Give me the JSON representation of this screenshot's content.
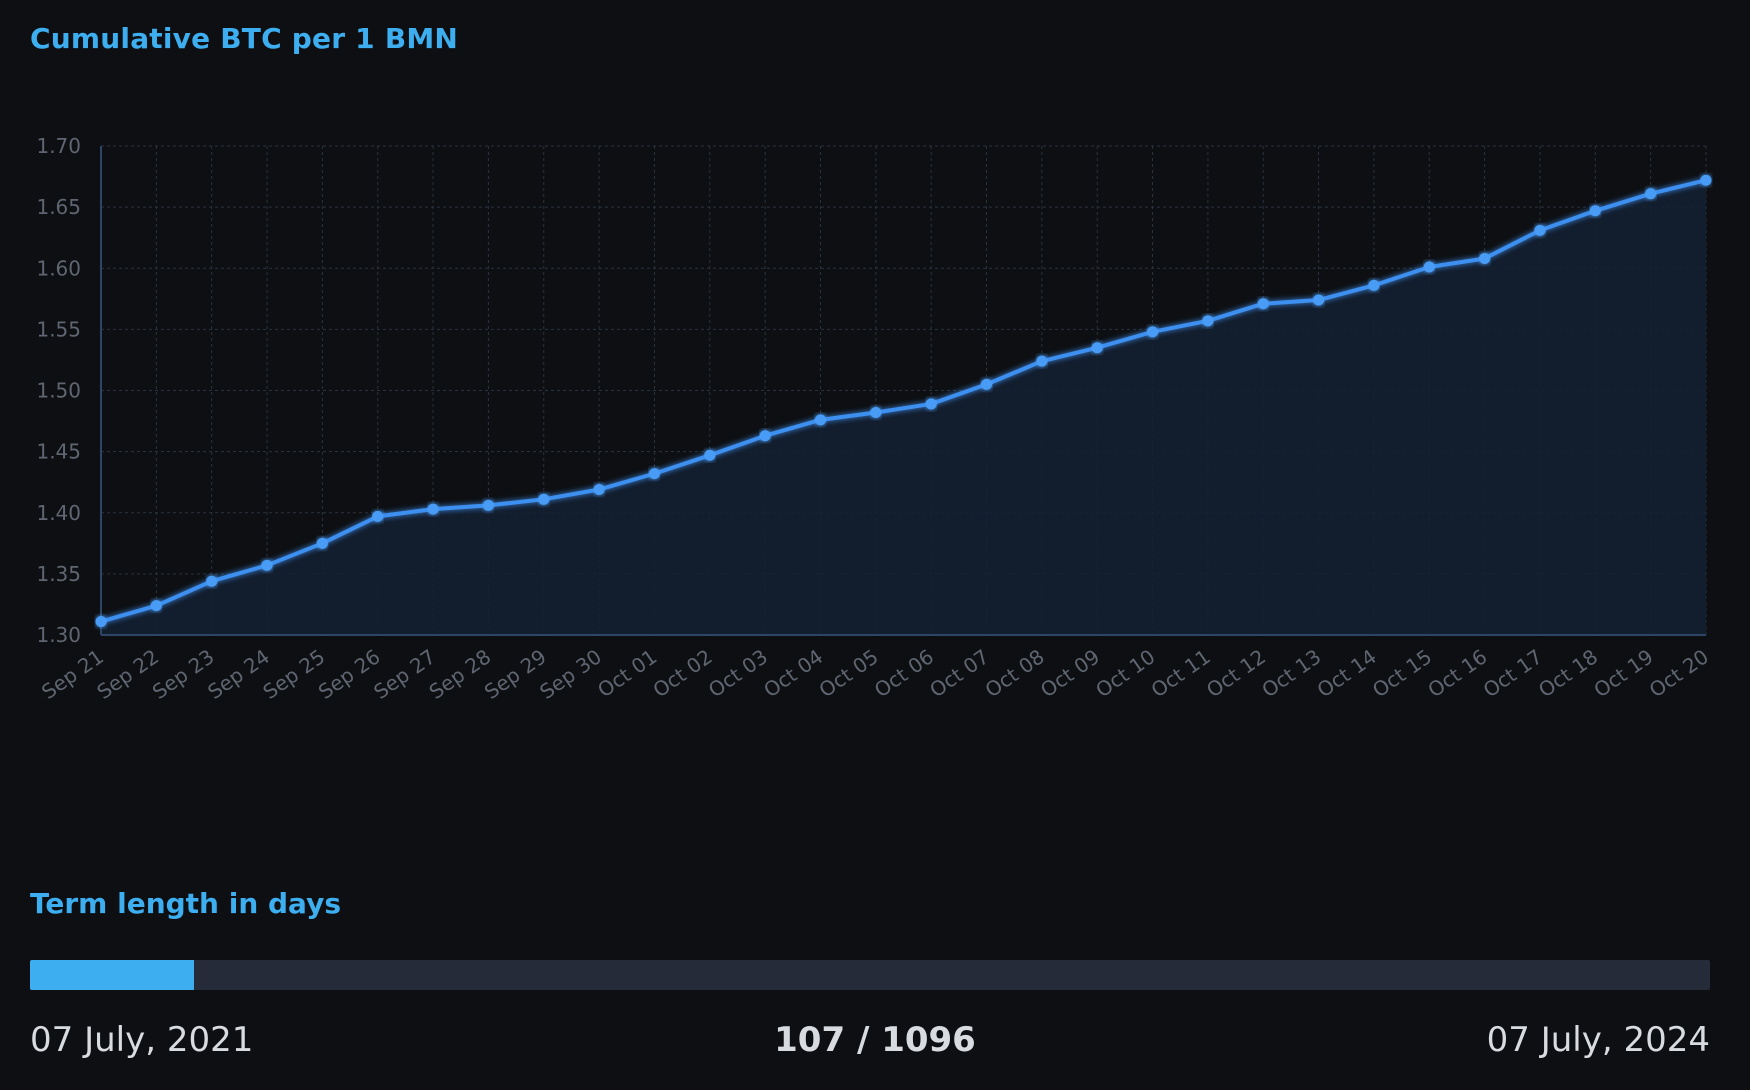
{
  "chart_title": "Cumulative BTC per 1 BMN",
  "chart_data": {
    "type": "area",
    "title": "Cumulative BTC per 1 BMN",
    "xlabel": "",
    "ylabel": "",
    "categories": [
      "Sep 21",
      "Sep 22",
      "Sep 23",
      "Sep 24",
      "Sep 25",
      "Sep 26",
      "Sep 27",
      "Sep 28",
      "Sep 29",
      "Sep 30",
      "Oct 01",
      "Oct 02",
      "Oct 03",
      "Oct 04",
      "Oct 05",
      "Oct 06",
      "Oct 07",
      "Oct 08",
      "Oct 09",
      "Oct 10",
      "Oct 11",
      "Oct 12",
      "Oct 13",
      "Oct 14",
      "Oct 15",
      "Oct 16",
      "Oct 17",
      "Oct 18",
      "Oct 19",
      "Oct 20"
    ],
    "values": [
      1.311,
      1.324,
      1.344,
      1.357,
      1.375,
      1.397,
      1.403,
      1.406,
      1.411,
      1.419,
      1.432,
      1.447,
      1.463,
      1.476,
      1.482,
      1.489,
      1.505,
      1.524,
      1.535,
      1.548,
      1.557,
      1.571,
      1.574,
      1.586,
      1.601,
      1.608,
      1.631,
      1.647,
      1.661,
      1.672
    ],
    "ylim": [
      1.3,
      1.7
    ],
    "yticks": [
      "1.30",
      "1.35",
      "1.40",
      "1.45",
      "1.50",
      "1.55",
      "1.60",
      "1.65",
      "1.70"
    ],
    "grid": true,
    "line_color": "#3d8ff0",
    "fill_color": "#142033"
  },
  "term": {
    "title": "Term length in days",
    "start_date": "07 July, 2021",
    "end_date": "07 July, 2024",
    "progress_text": "107 / 1096",
    "elapsed": 107,
    "total": 1096,
    "fill_color": "#3daef0"
  }
}
